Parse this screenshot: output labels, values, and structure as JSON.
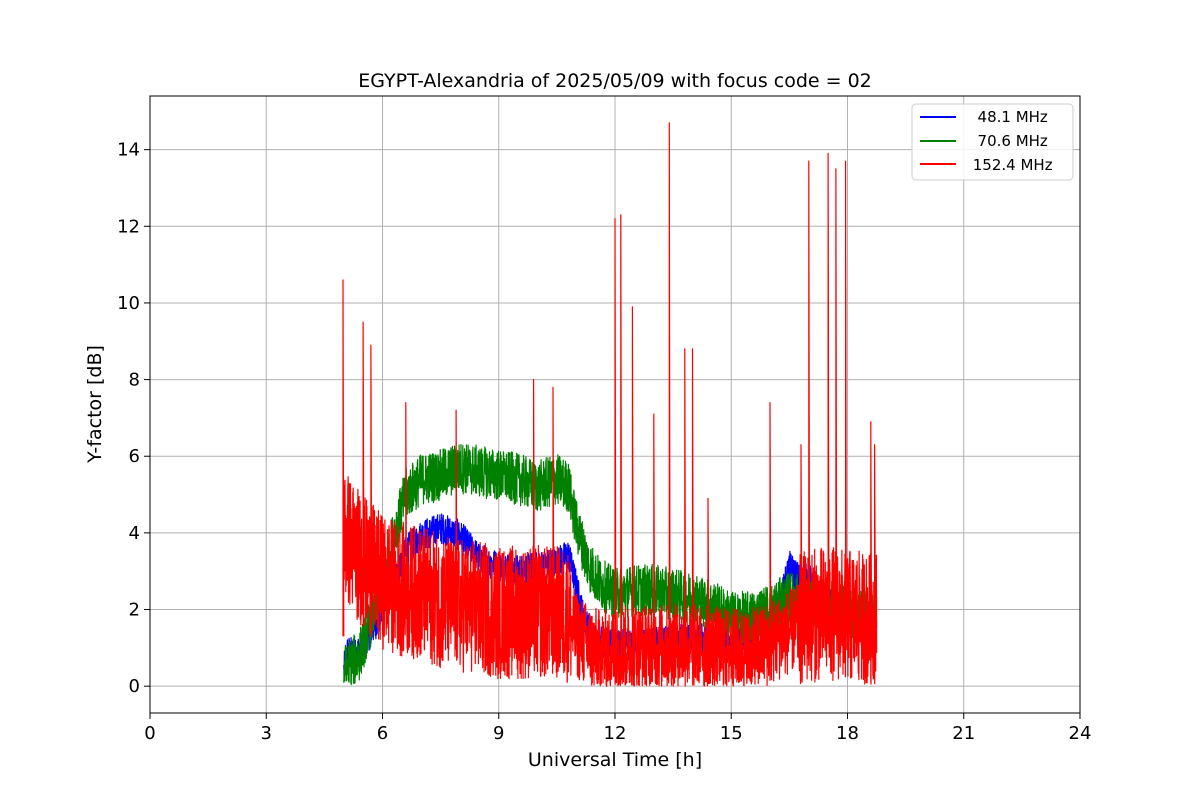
{
  "chart_data": {
    "type": "line",
    "title": "EGYPT-Alexandria of 2025/05/09 with focus code = 02",
    "xlabel": "Universal Time [h]",
    "ylabel": "Y-factor [dB]",
    "xlim": [
      0,
      24
    ],
    "ylim": [
      -0.7,
      15.4
    ],
    "xticks": [
      0,
      3,
      6,
      9,
      12,
      15,
      18,
      21,
      24
    ],
    "yticks": [
      0,
      2,
      4,
      6,
      8,
      10,
      12,
      14
    ],
    "grid": true,
    "legend_position": "top-right",
    "series": [
      {
        "name": "  48.1 MHz",
        "color": "#0000ff",
        "points": [
          [
            5.0,
            0.3
          ],
          [
            5.1,
            0.8
          ],
          [
            5.3,
            0.7
          ],
          [
            5.5,
            1.0
          ],
          [
            5.7,
            1.3
          ],
          [
            6.0,
            1.8
          ],
          [
            6.3,
            2.6
          ],
          [
            6.6,
            3.4
          ],
          [
            7.0,
            3.8
          ],
          [
            7.5,
            4.0
          ],
          [
            8.0,
            3.8
          ],
          [
            8.5,
            3.2
          ],
          [
            9.0,
            3.0
          ],
          [
            9.5,
            2.9
          ],
          [
            10.0,
            3.0
          ],
          [
            10.5,
            3.1
          ],
          [
            10.8,
            3.3
          ],
          [
            11.0,
            2.5
          ],
          [
            11.2,
            1.6
          ],
          [
            11.5,
            1.1
          ],
          [
            11.8,
            1.0
          ],
          [
            12.0,
            0.9
          ],
          [
            12.5,
            1.0
          ],
          [
            13.0,
            1.0
          ],
          [
            13.5,
            1.1
          ],
          [
            14.0,
            1.1
          ],
          [
            14.5,
            1.1
          ],
          [
            15.0,
            1.0
          ],
          [
            15.5,
            1.2
          ],
          [
            16.0,
            1.5
          ],
          [
            16.3,
            2.2
          ],
          [
            16.5,
            3.0
          ],
          [
            16.8,
            2.6
          ],
          [
            17.0,
            2.7
          ],
          [
            17.3,
            2.2
          ],
          [
            17.6,
            2.0
          ],
          [
            18.0,
            1.8
          ],
          [
            18.3,
            1.7
          ],
          [
            18.6,
            1.6
          ],
          [
            18.75,
            1.5
          ]
        ]
      },
      {
        "name": "  70.6 MHz",
        "color": "#008000",
        "points": [
          [
            5.0,
            0.2
          ],
          [
            5.2,
            0.4
          ],
          [
            5.4,
            0.6
          ],
          [
            5.6,
            1.2
          ],
          [
            5.8,
            1.8
          ],
          [
            6.0,
            2.5
          ],
          [
            6.3,
            3.8
          ],
          [
            6.6,
            4.8
          ],
          [
            7.0,
            5.2
          ],
          [
            7.5,
            5.3
          ],
          [
            8.0,
            5.5
          ],
          [
            8.5,
            5.4
          ],
          [
            9.0,
            5.3
          ],
          [
            9.5,
            5.2
          ],
          [
            10.0,
            5.0
          ],
          [
            10.5,
            5.2
          ],
          [
            10.8,
            5.0
          ],
          [
            11.0,
            4.0
          ],
          [
            11.3,
            3.0
          ],
          [
            11.6,
            2.5
          ],
          [
            12.0,
            2.2
          ],
          [
            12.5,
            2.3
          ],
          [
            13.0,
            2.3
          ],
          [
            13.5,
            2.2
          ],
          [
            14.0,
            2.1
          ],
          [
            14.5,
            1.9
          ],
          [
            15.0,
            1.6
          ],
          [
            15.5,
            1.6
          ],
          [
            16.0,
            1.8
          ],
          [
            16.5,
            2.1
          ],
          [
            17.0,
            2.0
          ],
          [
            17.5,
            1.9
          ],
          [
            18.0,
            1.7
          ],
          [
            18.5,
            1.6
          ],
          [
            18.75,
            1.8
          ]
        ]
      },
      {
        "name": " 152.4 MHz",
        "color": "#ff0000",
        "points": [
          [
            5.0,
            3.5
          ],
          [
            5.3,
            3.0
          ],
          [
            5.6,
            2.6
          ],
          [
            6.0,
            2.2
          ],
          [
            6.5,
            2.0
          ],
          [
            7.0,
            1.9
          ],
          [
            7.5,
            1.7
          ],
          [
            8.0,
            1.6
          ],
          [
            8.5,
            1.5
          ],
          [
            9.0,
            1.4
          ],
          [
            9.5,
            1.4
          ],
          [
            10.0,
            1.4
          ],
          [
            10.5,
            1.4
          ],
          [
            10.8,
            1.3
          ],
          [
            11.0,
            1.0
          ],
          [
            11.3,
            0.7
          ],
          [
            11.6,
            0.55
          ],
          [
            12.0,
            0.6
          ],
          [
            12.5,
            0.7
          ],
          [
            13.0,
            0.7
          ],
          [
            13.5,
            0.7
          ],
          [
            14.0,
            0.7
          ],
          [
            14.5,
            0.65
          ],
          [
            15.0,
            0.6
          ],
          [
            15.5,
            0.55
          ],
          [
            16.0,
            0.8
          ],
          [
            16.5,
            1.1
          ],
          [
            17.0,
            1.3
          ],
          [
            17.5,
            1.4
          ],
          [
            18.0,
            1.3
          ],
          [
            18.5,
            1.2
          ],
          [
            18.75,
            1.3
          ]
        ],
        "spikes": [
          [
            4.98,
            10.6
          ],
          [
            5.5,
            9.5
          ],
          [
            5.7,
            8.9
          ],
          [
            6.6,
            7.4
          ],
          [
            7.9,
            7.2
          ],
          [
            9.9,
            8.0
          ],
          [
            10.4,
            7.8
          ],
          [
            12.0,
            12.2
          ],
          [
            12.15,
            12.3
          ],
          [
            12.45,
            9.9
          ],
          [
            13.0,
            7.1
          ],
          [
            13.4,
            14.7
          ],
          [
            13.8,
            8.8
          ],
          [
            14.0,
            8.8
          ],
          [
            14.4,
            4.9
          ],
          [
            16.0,
            7.4
          ],
          [
            16.8,
            6.3
          ],
          [
            17.0,
            13.7
          ],
          [
            17.5,
            13.9
          ],
          [
            17.7,
            13.5
          ],
          [
            17.95,
            13.7
          ],
          [
            18.6,
            6.9
          ],
          [
            18.7,
            6.3
          ]
        ]
      }
    ]
  }
}
